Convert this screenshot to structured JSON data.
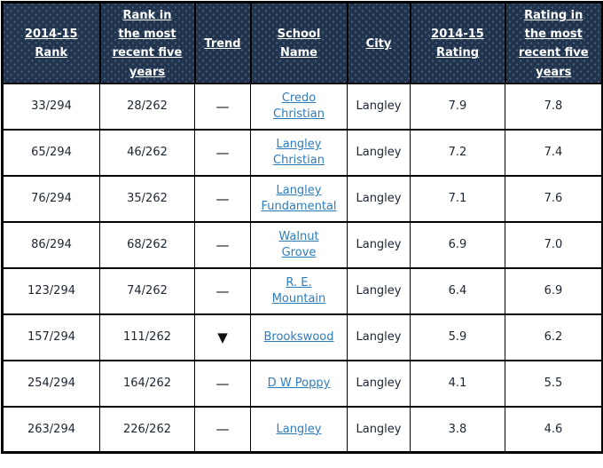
{
  "colors": {
    "header_bg": "#22344b",
    "header_dot": "#5f87b4",
    "header_text": "#ffffff",
    "border": "#000000",
    "link": "#2e7cbc",
    "cell_text": "#1c2633",
    "row_bg": "#ffffff"
  },
  "table": {
    "headers": {
      "rank": "2014-15\nRank",
      "recent_rank": "Rank in\nthe most\nrecent five\nyears",
      "trend": "Trend",
      "school": "School\nName",
      "city": "City",
      "rating": "2014-15\nRating",
      "recent_rating": "Rating in\nthe most\nrecent five\nyears"
    },
    "rows": [
      {
        "rank": "33/294",
        "recent_rank": "28/262",
        "trend": "—",
        "school": "Credo\nChristian",
        "city": "Langley",
        "rating": "7.9",
        "recent_rating": "7.8"
      },
      {
        "rank": "65/294",
        "recent_rank": "46/262",
        "trend": "—",
        "school": "Langley\nChristian",
        "city": "Langley",
        "rating": "7.2",
        "recent_rating": "7.4"
      },
      {
        "rank": "76/294",
        "recent_rank": "35/262",
        "trend": "—",
        "school": "Langley\nFundamental",
        "city": "Langley",
        "rating": "7.1",
        "recent_rating": "7.6"
      },
      {
        "rank": "86/294",
        "recent_rank": "68/262",
        "trend": "—",
        "school": "Walnut\nGrove",
        "city": "Langley",
        "rating": "6.9",
        "recent_rating": "7.0"
      },
      {
        "rank": "123/294",
        "recent_rank": "74/262",
        "trend": "—",
        "school": "R. E.\nMountain",
        "city": "Langley",
        "rating": "6.4",
        "recent_rating": "6.9"
      },
      {
        "rank": "157/294",
        "recent_rank": "111/262",
        "trend": "▼",
        "school": "Brookswood",
        "city": "Langley",
        "rating": "5.9",
        "recent_rating": "6.2"
      },
      {
        "rank": "254/294",
        "recent_rank": "164/262",
        "trend": "—",
        "school": "D W Poppy",
        "city": "Langley",
        "rating": "4.1",
        "recent_rating": "5.5"
      },
      {
        "rank": "263/294",
        "recent_rank": "226/262",
        "trend": "—",
        "school": "Langley",
        "city": "Langley",
        "rating": "3.8",
        "recent_rating": "4.6"
      }
    ]
  }
}
